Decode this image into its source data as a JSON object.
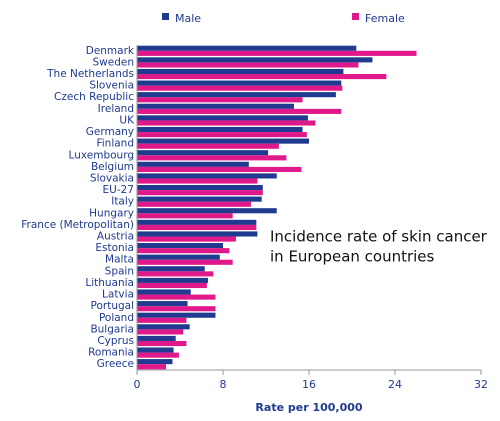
{
  "chart_data": {
    "type": "hbar",
    "annotation": [
      "Incidence rate of skin cancer",
      "in European countries"
    ],
    "xlabel": "Rate per 100,000",
    "categories": [
      "Denmark",
      "Sweden",
      "The Netherlands",
      "Slovenia",
      "Czech Republic",
      "Ireland",
      "UK",
      "Germany",
      "Finland",
      "Luxembourg",
      "Belgium",
      "Slovakia",
      "EU-27",
      "Italy",
      "Hungary",
      "France (Metropolitan)",
      "Austria",
      "Estonia",
      "Malta",
      "Spain",
      "Lithuania",
      "Latvia",
      "Portugal",
      "Poland",
      "Bulgaria",
      "Cyprus",
      "Romania",
      "Greece"
    ],
    "series": [
      {
        "name": "Male",
        "color": "#1f3a8f",
        "values": [
          20.4,
          21.9,
          19.2,
          19.0,
          18.5,
          14.6,
          15.9,
          15.4,
          16.0,
          12.2,
          10.4,
          13.0,
          11.7,
          11.6,
          13.0,
          11.1,
          11.2,
          8.0,
          7.7,
          6.3,
          6.6,
          5.0,
          4.7,
          7.3,
          4.9,
          3.6,
          3.4,
          3.3
        ]
      },
      {
        "name": "Female",
        "color": "#e0198a",
        "values": [
          26.0,
          20.6,
          23.2,
          19.1,
          15.4,
          19.0,
          16.6,
          15.8,
          13.2,
          13.9,
          15.3,
          11.2,
          11.7,
          10.6,
          8.9,
          11.1,
          9.2,
          8.6,
          8.9,
          7.1,
          6.5,
          7.3,
          7.3,
          4.6,
          4.3,
          4.6,
          3.9,
          2.7
        ]
      }
    ],
    "xlim": [
      0,
      32
    ],
    "xticks": [
      0,
      8,
      16,
      24,
      32
    ]
  }
}
